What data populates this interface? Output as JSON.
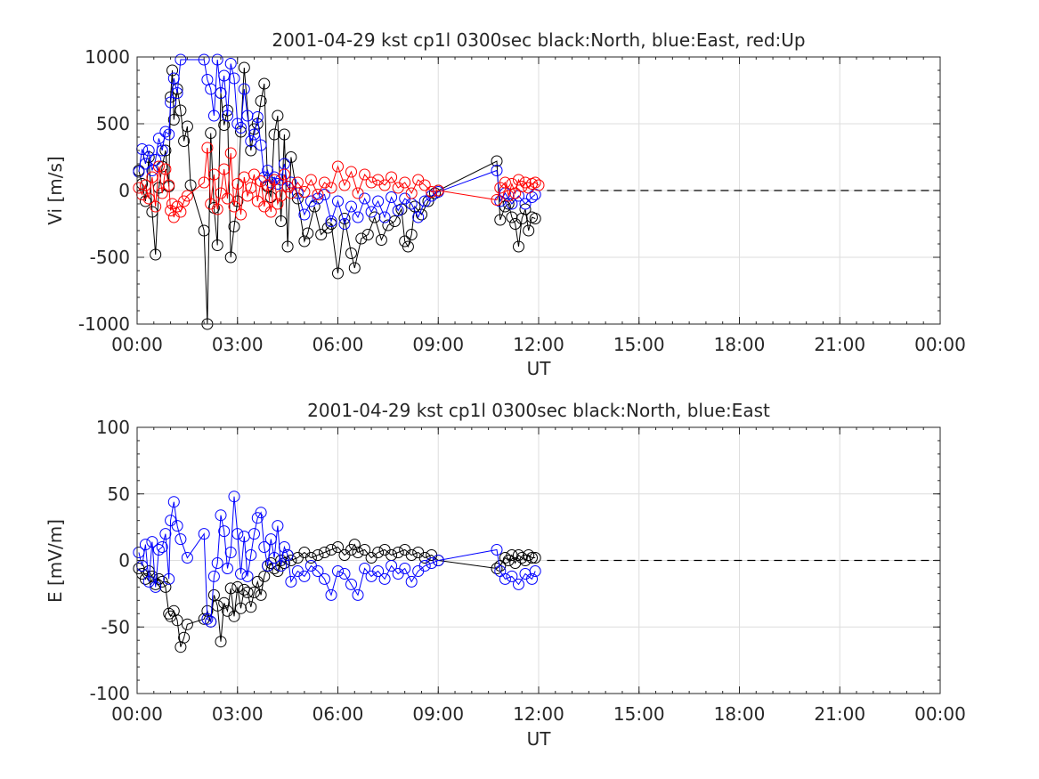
{
  "chart_data": [
    {
      "type": "line",
      "title": "2001-04-29 kst cp1l 0300sec black:North, blue:East, red:Up",
      "xlabel": "UT",
      "ylabel": "Vi [m/s]",
      "xlim_hours": [
        0,
        24
      ],
      "ylim": [
        -1000,
        1000
      ],
      "yticks": [
        -1000,
        -500,
        0,
        500,
        1000
      ],
      "xtick_hours": [
        0,
        3,
        6,
        9,
        12,
        15,
        18,
        21,
        24
      ],
      "xtick_labels": [
        "00:00",
        "03:00",
        "06:00",
        "09:00",
        "12:00",
        "15:00",
        "18:00",
        "21:00",
        "00:00"
      ],
      "grid": true,
      "marker": "circle",
      "zero_line": {
        "y": 0,
        "style": "dashed",
        "color": "#000000",
        "x_from_hours": 12.25,
        "x_to_hours": 24
      },
      "series": [
        {
          "color": "#000000",
          "x_hours": [
            0.05,
            0.15,
            0.25,
            0.35,
            0.45,
            0.55,
            0.65,
            0.75,
            0.85,
            0.95,
            1.0,
            1.05,
            1.1,
            1.2,
            1.3,
            1.4,
            1.5,
            1.6,
            2.0,
            2.1,
            2.2,
            2.3,
            2.4,
            2.5,
            2.6,
            2.7,
            2.8,
            2.9,
            3.0,
            3.1,
            3.2,
            3.4,
            3.5,
            3.6,
            3.7,
            3.8,
            3.9,
            4.0,
            4.1,
            4.2,
            4.3,
            4.4,
            4.5,
            4.6,
            4.8,
            5.0,
            5.1,
            5.3,
            5.5,
            5.7,
            5.8,
            6.0,
            6.2,
            6.4,
            6.5,
            6.7,
            6.9,
            7.1,
            7.3,
            7.5,
            7.7,
            7.9,
            8.0,
            8.1,
            8.2,
            8.3,
            8.5,
            8.7,
            8.9,
            9.0,
            10.75,
            10.85,
            11.0,
            11.1,
            11.2,
            11.3,
            11.4,
            11.5,
            11.6,
            11.7,
            11.8,
            11.9
          ],
          "values": [
            150,
            50,
            -80,
            250,
            -160,
            -480,
            20,
            180,
            300,
            30,
            700,
            900,
            530,
            760,
            600,
            370,
            480,
            40,
            -300,
            -1000,
            430,
            -130,
            -410,
            730,
            490,
            600,
            -500,
            -270,
            -80,
            440,
            920,
            300,
            460,
            500,
            670,
            800,
            30,
            -50,
            420,
            560,
            -230,
            420,
            -420,
            250,
            -60,
            -380,
            -320,
            -120,
            -330,
            -280,
            -250,
            -620,
            -210,
            -470,
            -580,
            -360,
            -330,
            -200,
            -370,
            -260,
            -230,
            -140,
            -380,
            -420,
            -330,
            -120,
            -180,
            -80,
            -20,
            0,
            220,
            -220,
            -120,
            -100,
            -200,
            -250,
            -420,
            -210,
            -140,
            -300,
            -200,
            -210
          ]
        },
        {
          "color": "#0000ff",
          "x_hours": [
            0.05,
            0.15,
            0.25,
            0.35,
            0.45,
            0.55,
            0.65,
            0.75,
            0.85,
            0.95,
            1.0,
            1.1,
            1.2,
            1.3,
            2.0,
            2.1,
            2.2,
            2.3,
            2.4,
            2.5,
            2.6,
            2.7,
            2.8,
            2.9,
            3.0,
            3.1,
            3.2,
            3.3,
            3.4,
            3.5,
            3.6,
            3.7,
            3.8,
            3.9,
            4.0,
            4.1,
            4.2,
            4.3,
            4.4,
            4.5,
            4.6,
            4.8,
            5.0,
            5.2,
            5.4,
            5.6,
            5.8,
            6.0,
            6.2,
            6.4,
            6.6,
            6.8,
            7.0,
            7.2,
            7.4,
            7.6,
            7.8,
            8.0,
            8.2,
            8.4,
            8.6,
            8.8,
            9.0,
            10.75,
            10.85,
            11.0,
            11.2,
            11.4,
            11.6,
            11.8,
            11.9
          ],
          "values": [
            140,
            310,
            200,
            300,
            150,
            230,
            390,
            300,
            440,
            420,
            660,
            840,
            730,
            980,
            980,
            830,
            760,
            560,
            980,
            730,
            860,
            560,
            950,
            840,
            500,
            470,
            760,
            560,
            370,
            420,
            550,
            340,
            100,
            150,
            60,
            100,
            50,
            80,
            200,
            30,
            60,
            -20,
            -180,
            -80,
            -60,
            -30,
            -230,
            -80,
            -250,
            -120,
            -200,
            -60,
            -160,
            -80,
            -200,
            -50,
            -150,
            -60,
            -100,
            -200,
            -80,
            -40,
            -10,
            150,
            -80,
            -20,
            -100,
            -40,
            -100,
            -50,
            -30
          ]
        },
        {
          "color": "#ff0000",
          "x_hours": [
            0.05,
            0.15,
            0.25,
            0.35,
            0.45,
            0.55,
            0.65,
            0.75,
            0.85,
            0.95,
            1.0,
            1.05,
            1.1,
            1.2,
            1.3,
            1.4,
            1.5,
            2.0,
            2.1,
            2.2,
            2.3,
            2.4,
            2.5,
            2.6,
            2.7,
            2.8,
            2.9,
            3.0,
            3.1,
            3.2,
            3.3,
            3.4,
            3.5,
            3.6,
            3.7,
            3.8,
            3.9,
            4.0,
            4.1,
            4.2,
            4.3,
            4.4,
            4.5,
            4.6,
            4.8,
            5.0,
            5.2,
            5.4,
            5.6,
            5.8,
            6.0,
            6.2,
            6.4,
            6.6,
            6.8,
            7.0,
            7.2,
            7.4,
            7.6,
            7.8,
            8.0,
            8.2,
            8.4,
            8.6,
            8.8,
            9.0,
            10.75,
            10.85,
            11.0,
            11.1,
            11.2,
            11.3,
            11.4,
            11.5,
            11.6,
            11.7,
            11.8,
            11.9,
            12.0
          ],
          "values": [
            20,
            -30,
            40,
            -60,
            100,
            -120,
            180,
            -20,
            160,
            40,
            -150,
            -100,
            -200,
            -120,
            -160,
            -80,
            -40,
            60,
            320,
            -100,
            120,
            -140,
            -20,
            160,
            -60,
            280,
            -120,
            50,
            -180,
            100,
            -40,
            20,
            120,
            -80,
            70,
            -120,
            40,
            -160,
            80,
            -100,
            -40,
            120,
            30,
            -20,
            60,
            -10,
            80,
            -30,
            60,
            20,
            180,
            40,
            140,
            -20,
            120,
            60,
            80,
            40,
            100,
            20,
            60,
            -20,
            80,
            40,
            -10,
            0,
            -70,
            20,
            60,
            -40,
            50,
            -20,
            80,
            30,
            60,
            20,
            50,
            60,
            40
          ]
        }
      ]
    },
    {
      "type": "line",
      "title": "2001-04-29 kst cp1l 0300sec black:North, blue:East",
      "xlabel": "UT",
      "ylabel": "E [mV/m]",
      "xlim_hours": [
        0,
        24
      ],
      "ylim": [
        -100,
        100
      ],
      "yticks": [
        -100,
        -50,
        0,
        50,
        100
      ],
      "xtick_hours": [
        0,
        3,
        6,
        9,
        12,
        15,
        18,
        21,
        24
      ],
      "xtick_labels": [
        "00:00",
        "03:00",
        "06:00",
        "09:00",
        "12:00",
        "15:00",
        "18:00",
        "21:00",
        "00:00"
      ],
      "grid": true,
      "marker": "circle",
      "zero_line": {
        "y": 0,
        "style": "dashed",
        "color": "#000000",
        "x_from_hours": 12.25,
        "x_to_hours": 24
      },
      "series": [
        {
          "color": "#000000",
          "x_hours": [
            0.05,
            0.15,
            0.25,
            0.35,
            0.45,
            0.55,
            0.65,
            0.75,
            0.85,
            0.95,
            1.0,
            1.1,
            1.2,
            1.3,
            1.4,
            1.5,
            2.0,
            2.1,
            2.2,
            2.3,
            2.4,
            2.5,
            2.6,
            2.7,
            2.8,
            2.9,
            3.0,
            3.1,
            3.2,
            3.3,
            3.4,
            3.5,
            3.6,
            3.7,
            3.8,
            3.9,
            4.0,
            4.1,
            4.2,
            4.3,
            4.4,
            4.5,
            4.6,
            4.8,
            5.0,
            5.2,
            5.4,
            5.6,
            5.8,
            6.0,
            6.2,
            6.4,
            6.5,
            6.6,
            6.8,
            7.0,
            7.2,
            7.4,
            7.6,
            7.8,
            8.0,
            8.2,
            8.4,
            8.6,
            8.8,
            9.0,
            10.75,
            10.85,
            11.0,
            11.1,
            11.2,
            11.3,
            11.4,
            11.5,
            11.6,
            11.7,
            11.8,
            11.9
          ],
          "values": [
            -6,
            -10,
            -14,
            -8,
            -12,
            -18,
            -14,
            -16,
            -20,
            -40,
            -42,
            -38,
            -45,
            -65,
            -58,
            -48,
            -44,
            -38,
            -46,
            -26,
            -34,
            -61,
            -32,
            -38,
            -21,
            -42,
            -20,
            -36,
            -22,
            -24,
            -35,
            -24,
            -16,
            -26,
            -12,
            -4,
            -2,
            -6,
            -8,
            0,
            -2,
            4,
            0,
            2,
            6,
            2,
            4,
            6,
            8,
            10,
            4,
            8,
            12,
            6,
            8,
            2,
            6,
            8,
            4,
            6,
            8,
            4,
            6,
            2,
            4,
            0,
            -6,
            -4,
            2,
            0,
            4,
            -2,
            4,
            2,
            0,
            4,
            2,
            2
          ]
        },
        {
          "color": "#0000ff",
          "x_hours": [
            0.05,
            0.15,
            0.25,
            0.35,
            0.45,
            0.55,
            0.65,
            0.75,
            0.85,
            0.95,
            1.0,
            1.1,
            1.2,
            1.3,
            1.5,
            2.0,
            2.1,
            2.2,
            2.3,
            2.4,
            2.5,
            2.6,
            2.7,
            2.8,
            2.9,
            3.0,
            3.1,
            3.2,
            3.3,
            3.4,
            3.5,
            3.6,
            3.7,
            3.8,
            3.9,
            4.0,
            4.1,
            4.2,
            4.3,
            4.4,
            4.5,
            4.6,
            4.8,
            5.0,
            5.2,
            5.4,
            5.6,
            5.8,
            6.0,
            6.2,
            6.4,
            6.6,
            6.8,
            7.0,
            7.2,
            7.4,
            7.6,
            7.8,
            8.0,
            8.2,
            8.4,
            8.6,
            8.8,
            9.0,
            10.75,
            10.85,
            11.0,
            11.2,
            11.4,
            11.6,
            11.8,
            11.9
          ],
          "values": [
            6,
            -4,
            12,
            -16,
            14,
            -20,
            8,
            10,
            20,
            -14,
            30,
            44,
            26,
            16,
            2,
            20,
            -44,
            -46,
            -12,
            -2,
            34,
            22,
            -6,
            6,
            48,
            20,
            -10,
            18,
            -12,
            4,
            20,
            32,
            36,
            10,
            -4,
            16,
            2,
            26,
            -4,
            10,
            4,
            -16,
            -8,
            -12,
            -4,
            -8,
            -14,
            -26,
            -8,
            -10,
            -18,
            -26,
            -6,
            -12,
            -8,
            -14,
            -4,
            -10,
            -6,
            -16,
            -8,
            -4,
            -2,
            0,
            8,
            -8,
            -14,
            -12,
            -18,
            -10,
            -14,
            -8
          ]
        }
      ]
    }
  ]
}
